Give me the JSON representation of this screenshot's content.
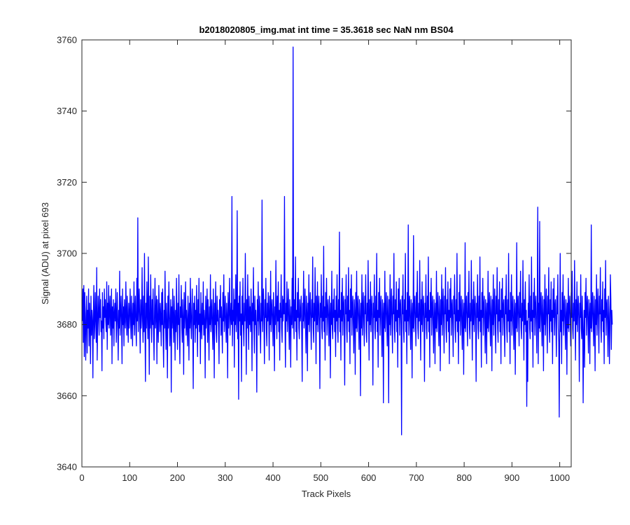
{
  "chart_data": {
    "type": "line",
    "title": "b2018020805_img.mat int time = 35.3618 sec  NaN nm BS04",
    "xlabel": "Track Pixels",
    "ylabel": "Signal (ADU) at pixel 693",
    "xlim": [
      0,
      1024
    ],
    "ylim": [
      3640,
      3760
    ],
    "xticks": [
      0,
      100,
      200,
      300,
      400,
      500,
      600,
      700,
      800,
      900,
      1000
    ],
    "yticks": [
      3640,
      3660,
      3680,
      3700,
      3720,
      3740,
      3760
    ],
    "grid": false,
    "line_color": "#0000ff",
    "series": [
      {
        "name": "",
        "x_start": 1,
        "x_step": 1,
        "values": [
          3681,
          3690,
          3675,
          3691,
          3671,
          3689,
          3680,
          3670,
          3683,
          3688,
          3672,
          3684,
          3679,
          3690,
          3674,
          3686,
          3681,
          3669,
          3688,
          3677,
          3684,
          3681,
          3665,
          3683,
          3691,
          3676,
          3680,
          3689,
          3681,
          3675,
          3696,
          3670,
          3680,
          3688,
          3683,
          3677,
          3690,
          3682,
          3687,
          3678,
          3681,
          3667,
          3689,
          3679,
          3685,
          3676,
          3690,
          3682,
          3687,
          3681,
          3678,
          3692,
          3673,
          3686,
          3680,
          3691,
          3679,
          3684,
          3688,
          3677,
          3682,
          3690,
          3669,
          3685,
          3679,
          3687,
          3674,
          3683,
          3686,
          3681,
          3690,
          3675,
          3682,
          3689,
          3680,
          3670,
          3684,
          3679,
          3695,
          3677,
          3683,
          3688,
          3681,
          3669,
          3690,
          3680,
          3685,
          3674,
          3687,
          3682,
          3679,
          3692,
          3683,
          3677,
          3688,
          3681,
          3675,
          3686,
          3679,
          3683,
          3690,
          3680,
          3676,
          3688,
          3682,
          3674,
          3686,
          3680,
          3692,
          3677,
          3684,
          3688,
          3679,
          3674,
          3693,
          3681,
          3710,
          3678,
          3685,
          3690,
          3681,
          3672,
          3687,
          3679,
          3683,
          3696,
          3681,
          3675,
          3688,
          3678,
          3700,
          3680,
          3664,
          3686,
          3679,
          3692,
          3683,
          3676,
          3699,
          3681,
          3666,
          3688,
          3679,
          3694,
          3682,
          3675,
          3687,
          3680,
          3690,
          3678,
          3670,
          3684,
          3693,
          3679,
          3683,
          3688,
          3669,
          3687,
          3680,
          3675,
          3691,
          3683,
          3678,
          3686,
          3682,
          3674,
          3689,
          3680,
          3690,
          3677,
          3668,
          3684,
          3679,
          3695,
          3681,
          3673,
          3686,
          3680,
          3665,
          3688,
          3679,
          3692,
          3683,
          3674,
          3681,
          3687,
          3661,
          3685,
          3679,
          3690,
          3681,
          3675,
          3688,
          3682,
          3670,
          3684,
          3678,
          3693,
          3681,
          3673,
          3686,
          3680,
          3694,
          3678,
          3669,
          3685,
          3682,
          3691,
          3679,
          3675,
          3687,
          3681,
          3666,
          3689,
          3679,
          3683,
          3692,
          3677,
          3684,
          3680,
          3674,
          3688,
          3682,
          3670,
          3686,
          3679,
          3693,
          3681,
          3676,
          3684,
          3690,
          3678,
          3662,
          3686,
          3680,
          3688,
          3675,
          3684,
          3679,
          3691,
          3682,
          3671,
          3687,
          3680,
          3693,
          3678,
          3683,
          3669,
          3689,
          3681,
          3676,
          3686,
          3680,
          3692,
          3677,
          3684,
          3681,
          3665,
          3688,
          3679,
          3683,
          3690,
          3675,
          3687,
          3681,
          3670,
          3685,
          3680,
          3694,
          3678,
          3683,
          3687,
          3679,
          3673,
          3690,
          3682,
          3665,
          3686,
          3680,
          3692,
          3678,
          3675,
          3688,
          3681,
          3684,
          3679,
          3669,
          3687,
          3682,
          3691,
          3677,
          3685,
          3680,
          3672,
          3689,
          3681,
          3694,
          3678,
          3683,
          3688,
          3680,
          3675,
          3686,
          3682,
          3665,
          3689,
          3679,
          3684,
          3693,
          3677,
          3682,
          3686,
          3680,
          3716,
          3674,
          3684,
          3681,
          3690,
          3668,
          3687,
          3680,
          3694,
          3678,
          3683,
          3712,
          3676,
          3686,
          3659,
          3688,
          3681,
          3692,
          3677,
          3683,
          3664,
          3688,
          3680,
          3693,
          3679,
          3674,
          3686,
          3681,
          3700,
          3683,
          3666,
          3687,
          3679,
          3694,
          3682,
          3673,
          3688,
          3680,
          3685,
          3678,
          3690,
          3683,
          3667,
          3686,
          3681,
          3696,
          3679,
          3672,
          3688,
          3680,
          3684,
          3678,
          3661,
          3687,
          3681,
          3692,
          3677,
          3683,
          3688,
          3679,
          3672,
          3686,
          3681,
          3715,
          3678,
          3684,
          3690,
          3680,
          3669,
          3687,
          3682,
          3693,
          3679,
          3674,
          3686,
          3681,
          3689,
          3683,
          3670,
          3688,
          3680,
          3695,
          3678,
          3684,
          3687,
          3681,
          3674,
          3689,
          3682,
          3667,
          3685,
          3680,
          3698,
          3683,
          3676,
          3688,
          3681,
          3692,
          3678,
          3684,
          3670,
          3686,
          3682,
          3694,
          3679,
          3675,
          3688,
          3681,
          3687,
          3683,
          3716,
          3680,
          3668,
          3686,
          3681,
          3692,
          3678,
          3684,
          3690,
          3680,
          3673,
          3687,
          3682,
          3668,
          3685,
          3680,
          3693,
          3679,
          3758,
          3682,
          3676,
          3687,
          3681,
          3699,
          3678,
          3684,
          3670,
          3689,
          3682,
          3693,
          3679,
          3676,
          3687,
          3681,
          3683,
          3688,
          3678,
          3664,
          3686,
          3681,
          3695,
          3679,
          3684,
          3690,
          3680,
          3672,
          3688,
          3683,
          3667,
          3686,
          3680,
          3694,
          3678,
          3684,
          3689,
          3681,
          3673,
          3687,
          3682,
          3699,
          3679,
          3675,
          3686,
          3681,
          3696,
          3683,
          3669,
          3688,
          3680,
          3692,
          3678,
          3684,
          3688,
          3681,
          3662,
          3686,
          3682,
          3694,
          3679,
          3676,
          3688,
          3681,
          3702,
          3678,
          3685,
          3670,
          3689,
          3682,
          3693,
          3677,
          3684,
          3687,
          3681,
          3674,
          3688,
          3683,
          3665,
          3686,
          3680,
          3695,
          3679,
          3676,
          3687,
          3682,
          3690,
          3678,
          3684,
          3671,
          3688,
          3681,
          3694,
          3679,
          3675,
          3687,
          3682,
          3706,
          3678,
          3684,
          3670,
          3689,
          3681,
          3693,
          3677,
          3685,
          3688,
          3680,
          3663,
          3687,
          3683,
          3694,
          3679,
          3675,
          3688,
          3681,
          3696,
          3678,
          3684,
          3669,
          3690,
          3682,
          3694,
          3677,
          3685,
          3688,
          3680,
          3672,
          3687,
          3683,
          3666,
          3689,
          3679,
          3695,
          3678,
          3684,
          3688,
          3681,
          3673,
          3687,
          3682,
          3660,
          3686,
          3679,
          3694,
          3677,
          3684,
          3689,
          3680,
          3674,
          3688,
          3683,
          3694,
          3678,
          3675,
          3686,
          3681,
          3698,
          3683,
          3670,
          3687,
          3680,
          3692,
          3678,
          3684,
          3688,
          3681,
          3663,
          3686,
          3682,
          3694,
          3679,
          3676,
          3688,
          3681,
          3700,
          3678,
          3684,
          3668,
          3689,
          3682,
          3693,
          3677,
          3685,
          3688,
          3680,
          3671,
          3687,
          3683,
          3658,
          3686,
          3679,
          3695,
          3678,
          3684,
          3689,
          3681,
          3674,
          3688,
          3682,
          3658,
          3687,
          3680,
          3694,
          3677,
          3684,
          3690,
          3681,
          3672,
          3688,
          3683,
          3700,
          3679,
          3675,
          3687,
          3681,
          3692,
          3678,
          3684,
          3668,
          3690,
          3682,
          3693,
          3677,
          3685,
          3687,
          3680,
          3649,
          3688,
          3683,
          3694,
          3679,
          3675,
          3687,
          3681,
          3700,
          3678,
          3684,
          3669,
          3689,
          3681,
          3708,
          3677,
          3684,
          3688,
          3680,
          3673,
          3687,
          3683,
          3665,
          3686,
          3679,
          3705,
          3678,
          3685,
          3688,
          3681,
          3674,
          3689,
          3682,
          3695,
          3679,
          3676,
          3686,
          3681,
          3698,
          3683,
          3670,
          3687,
          3680,
          3692,
          3678,
          3684,
          3688,
          3681,
          3664,
          3686,
          3682,
          3694,
          3679,
          3676,
          3688,
          3681,
          3699,
          3678,
          3684,
          3668,
          3689,
          3682,
          3693,
          3677,
          3685,
          3688,
          3680,
          3672,
          3687,
          3683,
          3669,
          3686,
          3679,
          3695,
          3678,
          3684,
          3689,
          3681,
          3674,
          3688,
          3682,
          3667,
          3687,
          3680,
          3694,
          3677,
          3684,
          3690,
          3681,
          3672,
          3688,
          3683,
          3696,
          3679,
          3675,
          3687,
          3681,
          3692,
          3678,
          3684,
          3669,
          3690,
          3682,
          3693,
          3677,
          3685,
          3687,
          3680,
          3671,
          3688,
          3683,
          3694,
          3679,
          3675,
          3687,
          3681,
          3700,
          3678,
          3684,
          3669,
          3689,
          3681,
          3694,
          3677,
          3684,
          3688,
          3680,
          3673,
          3687,
          3683,
          3666,
          3686,
          3679,
          3703,
          3678,
          3685,
          3688,
          3681,
          3674,
          3689,
          3682,
          3695,
          3679,
          3676,
          3686,
          3681,
          3698,
          3683,
          3670,
          3687,
          3680,
          3692,
          3678,
          3684,
          3688,
          3681,
          3664,
          3686,
          3682,
          3694,
          3679,
          3676,
          3688,
          3681,
          3699,
          3678,
          3684,
          3668,
          3689,
          3682,
          3693,
          3677,
          3685,
          3688,
          3680,
          3672,
          3687,
          3683,
          3669,
          3686,
          3679,
          3695,
          3678,
          3684,
          3689,
          3681,
          3674,
          3688,
          3682,
          3667,
          3687,
          3680,
          3694,
          3677,
          3684,
          3690,
          3681,
          3672,
          3688,
          3683,
          3696,
          3679,
          3675,
          3687,
          3681,
          3692,
          3678,
          3684,
          3669,
          3690,
          3682,
          3693,
          3677,
          3685,
          3687,
          3680,
          3671,
          3688,
          3683,
          3694,
          3679,
          3675,
          3687,
          3681,
          3700,
          3678,
          3684,
          3669,
          3689,
          3681,
          3694,
          3677,
          3684,
          3688,
          3680,
          3673,
          3687,
          3683,
          3666,
          3686,
          3679,
          3703,
          3678,
          3685,
          3688,
          3681,
          3674,
          3689,
          3682,
          3695,
          3679,
          3676,
          3686,
          3681,
          3698,
          3683,
          3670,
          3687,
          3680,
          3692,
          3678,
          3684,
          3657,
          3681,
          3664,
          3686,
          3682,
          3694,
          3679,
          3676,
          3688,
          3681,
          3699,
          3678,
          3684,
          3668,
          3689,
          3682,
          3693,
          3677,
          3685,
          3688,
          3680,
          3672,
          3687,
          3713,
          3669,
          3686,
          3679,
          3709,
          3678,
          3684,
          3689,
          3681,
          3674,
          3688,
          3682,
          3667,
          3687,
          3680,
          3694,
          3677,
          3684,
          3690,
          3681,
          3672,
          3688,
          3683,
          3696,
          3679,
          3675,
          3687,
          3681,
          3692,
          3678,
          3684,
          3669,
          3690,
          3682,
          3693,
          3677,
          3685,
          3687,
          3680,
          3671,
          3688,
          3683,
          3694,
          3679,
          3675,
          3654,
          3681,
          3700,
          3678,
          3684,
          3669,
          3689,
          3681,
          3694,
          3677,
          3684,
          3688,
          3680,
          3673,
          3687,
          3683,
          3666,
          3686,
          3679,
          3693,
          3678,
          3685,
          3688,
          3681,
          3674,
          3689,
          3682,
          3695,
          3679,
          3676,
          3686,
          3681,
          3698,
          3683,
          3670,
          3687,
          3680,
          3692,
          3678,
          3684,
          3688,
          3681,
          3664,
          3686,
          3682,
          3694,
          3679,
          3676,
          3688,
          3681,
          3658,
          3678,
          3684,
          3668,
          3689,
          3682,
          3693,
          3677,
          3685,
          3688,
          3680,
          3672,
          3687,
          3683,
          3669,
          3686,
          3679,
          3708,
          3678,
          3684,
          3689,
          3681,
          3674,
          3688,
          3682,
          3667,
          3687,
          3680,
          3694,
          3677,
          3684,
          3690,
          3681,
          3672,
          3688,
          3683,
          3696,
          3679,
          3675,
          3687,
          3681,
          3692,
          3678,
          3684,
          3669,
          3690,
          3682,
          3698,
          3677,
          3685,
          3687,
          3680,
          3671,
          3688,
          3683,
          3669,
          3679,
          3694,
          3687,
          3673,
          3684,
          3680
        ]
      }
    ]
  }
}
